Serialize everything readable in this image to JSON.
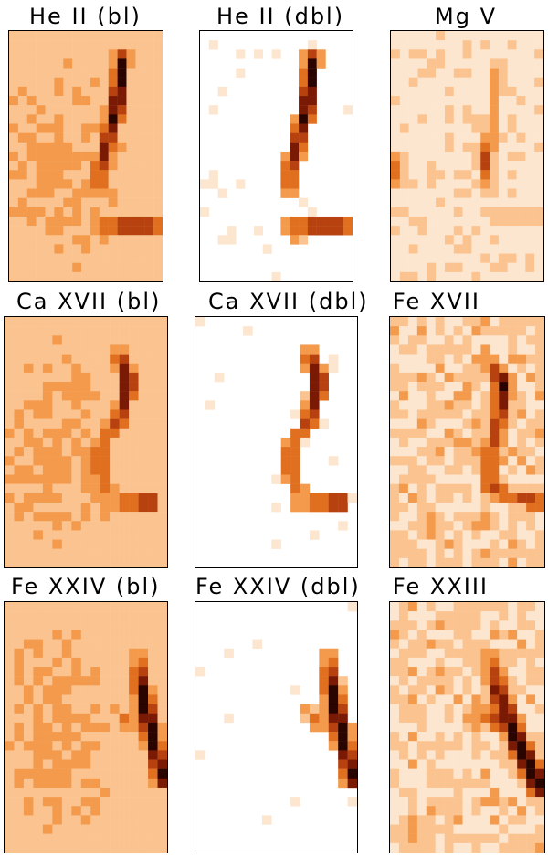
{
  "panels": [
    {
      "title": "He II (bl)",
      "style": "diffuse",
      "feature": "arc-a"
    },
    {
      "title": "He II (dbl)",
      "style": "sparse",
      "feature": "arc-a"
    },
    {
      "title": "Mg V",
      "style": "faint",
      "feature": "arc-mg"
    },
    {
      "title": "Ca XVII (bl)",
      "style": "diffuse",
      "feature": "arc-ca"
    },
    {
      "title": "Ca XVII (dbl)",
      "style": "sparse",
      "feature": "arc-ca"
    },
    {
      "title": "Fe XVII",
      "style": "noisy",
      "feature": "arc-fe17"
    },
    {
      "title": "Fe XXIV (bl)",
      "style": "diffuse",
      "feature": "arc-fe24"
    },
    {
      "title": "Fe XXIV (dbl)",
      "style": "sparse",
      "feature": "arc-fe24"
    },
    {
      "title": "Fe XXIII",
      "style": "noisy",
      "feature": "arc-fe23"
    }
  ],
  "colormap": [
    "#ffffff",
    "#fde6cf",
    "#fbc38f",
    "#f39a4c",
    "#e06f1f",
    "#b8420f",
    "#7a1a05",
    "#2a0500"
  ]
}
